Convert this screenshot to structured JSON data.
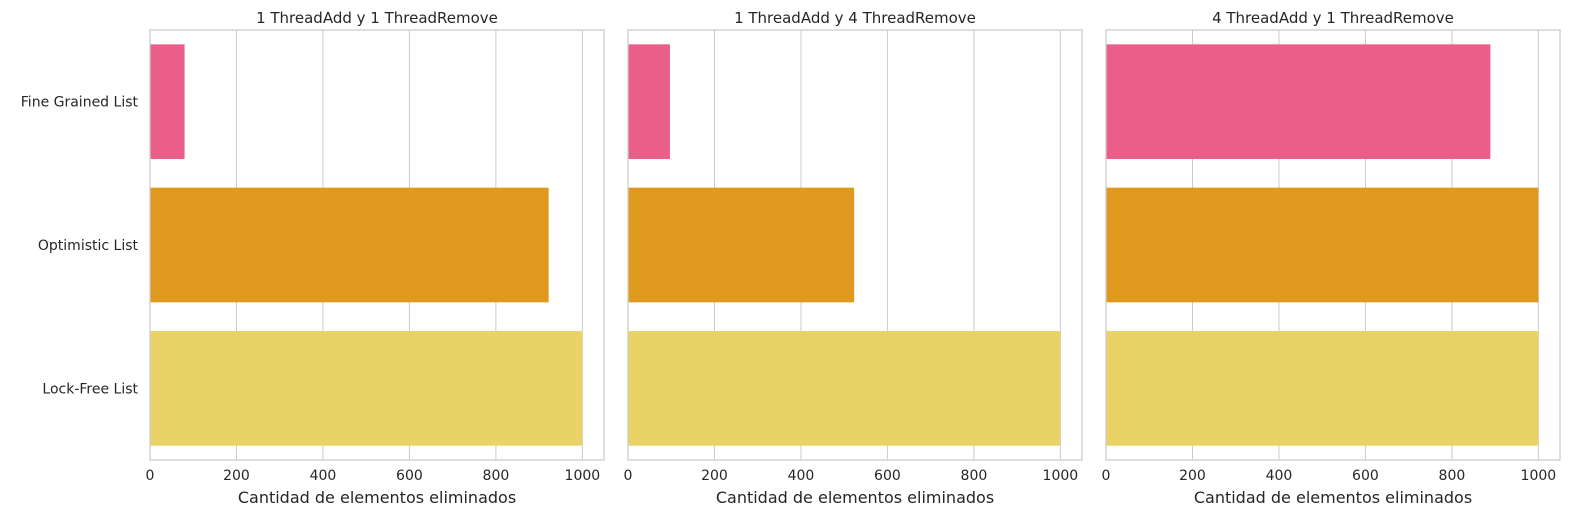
{
  "chart_data": [
    {
      "type": "bar",
      "orientation": "horizontal",
      "title": "1 ThreadAdd y 1 ThreadRemove",
      "categories": [
        "Fine Grained List",
        "Optimistic List",
        "Lock-Free List"
      ],
      "values": [
        80,
        922,
        1000
      ],
      "xlabel": "Cantidad de elementos eliminados",
      "ylabel": "",
      "xlim": [
        0,
        1050
      ],
      "xticks": [
        0,
        200,
        400,
        600,
        800,
        1000
      ],
      "grid": true
    },
    {
      "type": "bar",
      "orientation": "horizontal",
      "title": "1 ThreadAdd y 4 ThreadRemove",
      "categories": [
        "Fine Grained List",
        "Optimistic List",
        "Lock-Free List"
      ],
      "values": [
        97,
        523,
        1000
      ],
      "xlabel": "Cantidad de elementos eliminados",
      "ylabel": "",
      "xlim": [
        0,
        1050
      ],
      "xticks": [
        0,
        200,
        400,
        600,
        800,
        1000
      ],
      "grid": true
    },
    {
      "type": "bar",
      "orientation": "horizontal",
      "title": "4 ThreadAdd y 1 ThreadRemove",
      "categories": [
        "Fine Grained List",
        "Optimistic List",
        "Lock-Free List"
      ],
      "values": [
        889,
        1000,
        1000
      ],
      "xlabel": "Cantidad de elementos eliminados",
      "ylabel": "",
      "xlim": [
        0,
        1050
      ],
      "xticks": [
        0,
        200,
        400,
        600,
        800,
        1000
      ],
      "grid": true
    }
  ],
  "colors": {
    "bars": [
      "#ea5f89",
      "#e0991f",
      "#e9d366"
    ],
    "grid": "#cccccc",
    "text": "#262626"
  }
}
